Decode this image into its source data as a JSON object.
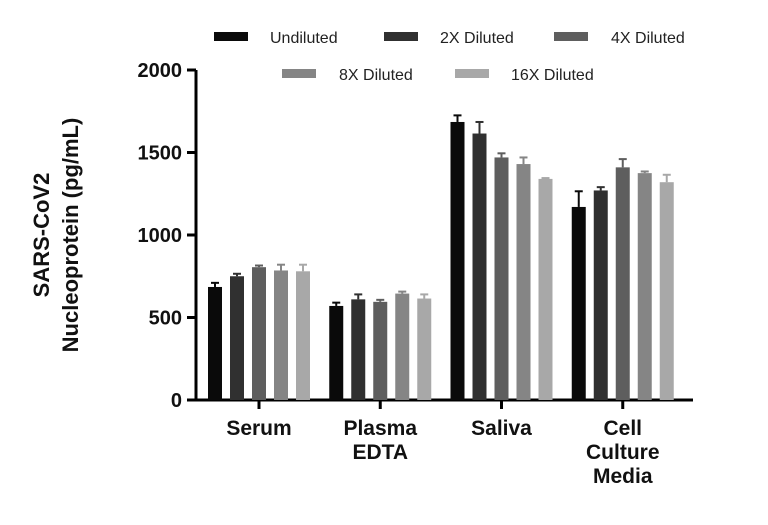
{
  "chart_data": {
    "type": "bar",
    "title": "",
    "xlabel": "",
    "ylabel_lines": [
      "SARS-CoV2",
      "Nucleoprotein (pg/mL)"
    ],
    "ylim": [
      0,
      2000
    ],
    "yticks": [
      0,
      500,
      1000,
      1500,
      2000
    ],
    "categories": [
      {
        "lines": [
          "Serum"
        ]
      },
      {
        "lines": [
          "Plasma",
          "EDTA"
        ]
      },
      {
        "lines": [
          "Saliva"
        ]
      },
      {
        "lines": [
          "Cell",
          "Culture",
          "Media"
        ]
      }
    ],
    "series": [
      {
        "name": "Undiluted",
        "color": "#0a0a0a",
        "values": [
          685,
          570,
          1685,
          1170
        ],
        "errors": [
          25,
          20,
          40,
          95
        ]
      },
      {
        "name": "2X Diluted",
        "color": "#303030",
        "values": [
          750,
          610,
          1615,
          1270
        ],
        "errors": [
          15,
          30,
          70,
          20
        ]
      },
      {
        "name": "4X Diluted",
        "color": "#5e5e5e",
        "values": [
          805,
          595,
          1470,
          1410
        ],
        "errors": [
          10,
          12,
          25,
          50
        ]
      },
      {
        "name": "8X Diluted",
        "color": "#858585",
        "values": [
          785,
          645,
          1430,
          1375
        ],
        "errors": [
          35,
          12,
          40,
          10
        ]
      },
      {
        "name": "16X Diluted",
        "color": "#a8a8a8",
        "values": [
          780,
          615,
          1340,
          1320
        ],
        "errors": [
          40,
          25,
          5,
          45
        ]
      }
    ],
    "legend": {
      "position": "top",
      "rows": [
        [
          0,
          1,
          2
        ],
        [
          3,
          4
        ]
      ]
    },
    "grid": false
  }
}
